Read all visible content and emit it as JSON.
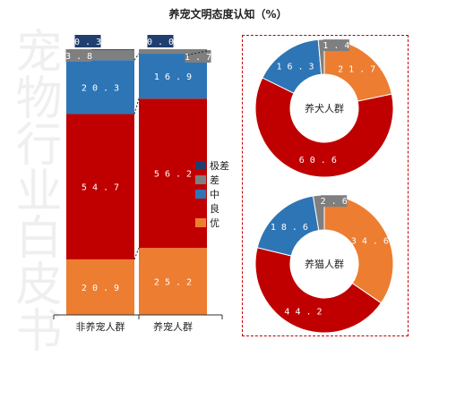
{
  "title": "养宠文明态度认知（%）",
  "watermark": "宠物行业白皮书",
  "colors": {
    "极差": "#1f3f6e",
    "差": "#7f7f7f",
    "中": "#2e75b6",
    "良": "#c00000",
    "优": "#ed7d31"
  },
  "legend": {
    "items": [
      {
        "label": "极差",
        "color": "#1f3f6e"
      },
      {
        "label": "差",
        "color": "#7f7f7f"
      },
      {
        "label": "中",
        "color": "#2e75b6"
      },
      {
        "label": "良",
        "color": "#c00000"
      },
      {
        "label": "优",
        "color": "#ed7d31"
      }
    ]
  },
  "chart_data": [
    {
      "type": "bar",
      "stacked": true,
      "categories": [
        "非养宠人群",
        "养宠人群"
      ],
      "series": [
        {
          "name": "优",
          "values": [
            20.9,
            25.2
          ]
        },
        {
          "name": "良",
          "values": [
            54.7,
            56.2
          ]
        },
        {
          "name": "中",
          "values": [
            20.3,
            16.9
          ]
        },
        {
          "name": "差",
          "values": [
            3.8,
            1.7
          ]
        },
        {
          "name": "极差",
          "values": [
            0.3,
            0.0
          ]
        }
      ],
      "ylim": [
        0,
        100
      ],
      "grid": false,
      "legend_position": "right"
    },
    {
      "type": "pie",
      "style": "donut",
      "center_label": "养犬人群",
      "labels": [
        "优",
        "良",
        "中",
        "差",
        "极差"
      ],
      "values": [
        21.7,
        60.6,
        16.3,
        1.4,
        0.0
      ]
    },
    {
      "type": "pie",
      "style": "donut",
      "center_label": "养猫人群",
      "labels": [
        "优",
        "良",
        "中",
        "差",
        "极差"
      ],
      "values": [
        34.6,
        44.2,
        18.6,
        2.6,
        0.0
      ]
    }
  ]
}
